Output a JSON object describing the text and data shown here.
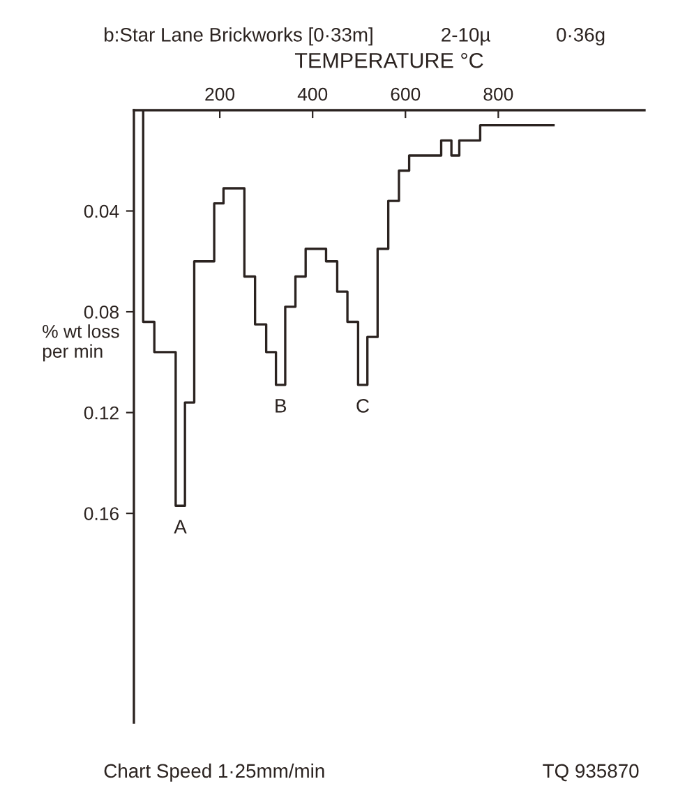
{
  "chart_data": {
    "type": "step",
    "title": "b:Star Lane Brickworks [0·33m]",
    "xlabel": "TEMPERATURE °C",
    "ylabel": "% wt loss\nper min",
    "x": [
      35,
      35,
      59,
      105,
      125,
      145,
      188,
      208,
      253,
      276,
      300,
      321,
      341,
      363,
      385,
      429,
      453,
      475,
      498,
      518,
      540,
      563,
      586,
      608,
      677,
      699,
      716,
      761,
      919
    ],
    "values": [
      0,
      0.084,
      0.096,
      0.157,
      0.116,
      0.06,
      0.037,
      0.031,
      0.066,
      0.085,
      0.096,
      0.109,
      0.078,
      0.066,
      0.055,
      0.06,
      0.072,
      0.084,
      0.109,
      0.09,
      0.055,
      0.036,
      0.024,
      0.018,
      0.012,
      0.018,
      0.012,
      0.006,
      0.006
    ],
    "color": "#2b2320",
    "xlim": [
      15,
      1115
    ],
    "ylim": [
      0.243,
      0
    ],
    "xticks": [
      200,
      400,
      600,
      800
    ],
    "yticks": [
      0.04,
      0.08,
      0.12,
      0.16
    ],
    "grid": false,
    "legend": false,
    "marker": "none",
    "line_style": "solid",
    "annotations": [
      {
        "text": "A",
        "x": 115,
        "y": 0.157
      },
      {
        "text": "B",
        "x": 331,
        "y": 0.109
      },
      {
        "text": "C",
        "x": 508,
        "y": 0.109
      },
      "2-10µ",
      "0·36g",
      "Chart Speed 1·25mm/min",
      "TQ 935870"
    ]
  }
}
